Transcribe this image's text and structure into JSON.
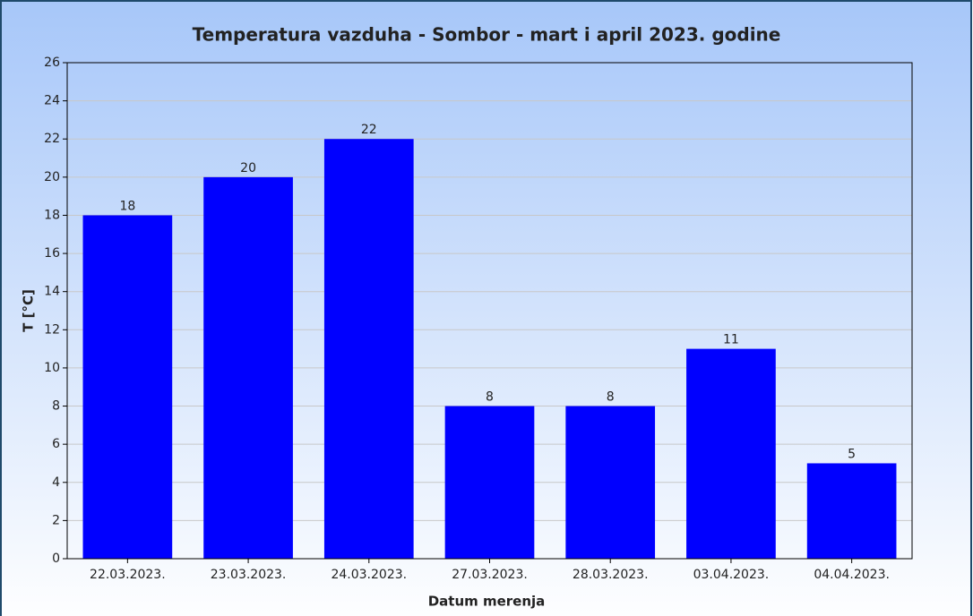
{
  "chart_data": {
    "type": "bar",
    "title": "Temperatura vazduha - Sombor - mart i april 2023. godine",
    "x_label": "Datum merenja",
    "y_label": "T [°C]",
    "categories": [
      "22.03.2023.",
      "23.03.2023.",
      "24.03.2023.",
      "27.03.2023.",
      "28.03.2023.",
      "03.04.2023.",
      "04.04.2023."
    ],
    "values": [
      18,
      20,
      22,
      8,
      8,
      11,
      5
    ],
    "color": "#0000ff",
    "ylim": [
      0,
      26
    ],
    "yticks": [
      0,
      2,
      4,
      6,
      8,
      10,
      12,
      14,
      16,
      18,
      20,
      22,
      24,
      26
    ],
    "grid": true
  }
}
